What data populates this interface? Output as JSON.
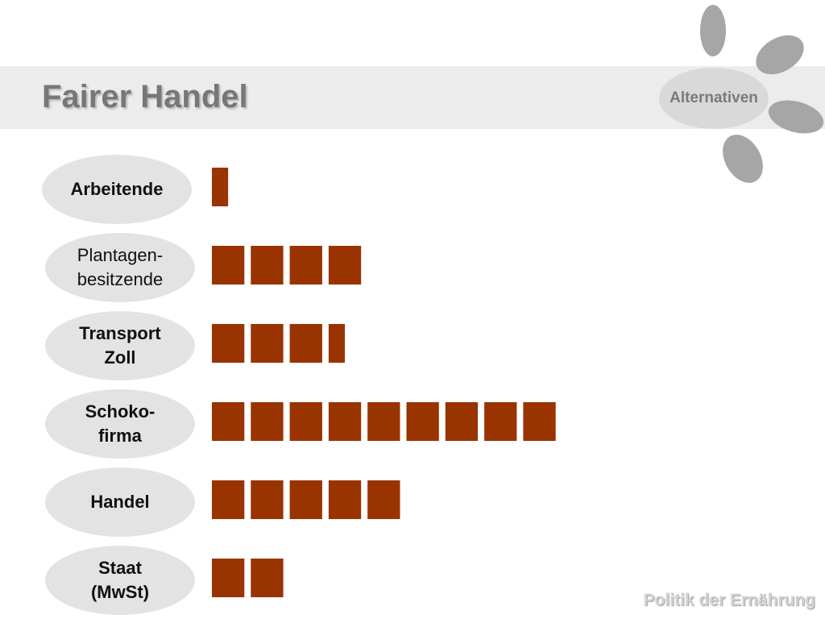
{
  "header": {
    "title": "Fairer Handel",
    "nav_label": "Alternativen"
  },
  "footer": {
    "text": "Politik der Ernährung"
  },
  "colors": {
    "bar": "#993300",
    "petal": "#a6a6a6",
    "oval": "#e3e3e3"
  },
  "chart_data": {
    "type": "bar",
    "orientation": "horizontal",
    "unit_style": "stacked squares (pictogram)",
    "title": "",
    "xlabel": "",
    "ylabel": "",
    "categories": [
      "Arbeitende",
      "Plantagen-\nbesitzende",
      "Transport\nZoll",
      "Schoko-\nfirma",
      "Handel",
      "Staat\n(MwSt)"
    ],
    "values": [
      0.5,
      4,
      3.5,
      9,
      5,
      2
    ],
    "bold_labels": [
      true,
      false,
      true,
      true,
      true,
      true
    ]
  }
}
